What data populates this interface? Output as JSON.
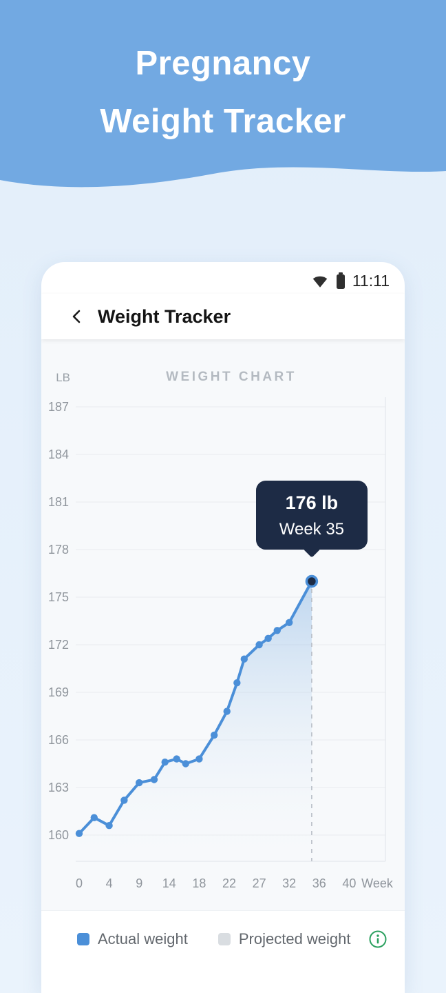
{
  "banner": {
    "title_lines": [
      "Pregnancy",
      "Weight Tracker"
    ]
  },
  "status_bar": {
    "time": "11:11"
  },
  "header": {
    "title": "Weight Tracker"
  },
  "chart_data": {
    "type": "line",
    "title": "WEIGHT CHART",
    "y_unit_label": "LB",
    "y_ticks": [
      187,
      184,
      181,
      178,
      175,
      172,
      169,
      166,
      163,
      160
    ],
    "ylim": [
      158.5,
      188.5
    ],
    "x_ticks": [
      0,
      4,
      9,
      14,
      18,
      22,
      27,
      32,
      36,
      40
    ],
    "x_axis_label": "Week",
    "grid": true,
    "legend_position": "bottom",
    "series": [
      {
        "name": "Actual weight",
        "points": [
          [
            0,
            160.1
          ],
          [
            2,
            161.1
          ],
          [
            4,
            160.6
          ],
          [
            6.5,
            162.2
          ],
          [
            9,
            163.3
          ],
          [
            11.5,
            163.5
          ],
          [
            13.3,
            164.6
          ],
          [
            15,
            164.8
          ],
          [
            16.2,
            164.5
          ],
          [
            18,
            164.8
          ],
          [
            20,
            166.3
          ],
          [
            21.7,
            167.8
          ],
          [
            23.3,
            169.6
          ],
          [
            24.5,
            171.1
          ],
          [
            27,
            172.0
          ],
          [
            28.5,
            172.4
          ],
          [
            30,
            172.9
          ],
          [
            32,
            173.4
          ],
          [
            35,
            176.0
          ]
        ]
      }
    ],
    "highlight": {
      "week": 35,
      "weight": 176,
      "tooltip_line1": "176 lb",
      "tooltip_line2": "Week 35"
    },
    "colors": {
      "line": "#4b8fd8",
      "area_top": "rgba(112,166,222,0.42)",
      "area_bottom": "rgba(240,246,252,0)",
      "grid": "#e9ecef",
      "axis": "#dfe3e8",
      "tick_text": "#8f959c",
      "tooltip_bg": "#1d2b45",
      "dashed": "#b9bfc7",
      "info": "#2ba05f"
    }
  },
  "legend": {
    "items": [
      {
        "label": "Actual weight",
        "color": "#4b8fd8"
      },
      {
        "label": "Projected weight",
        "color": "#d9dde1"
      }
    ]
  }
}
